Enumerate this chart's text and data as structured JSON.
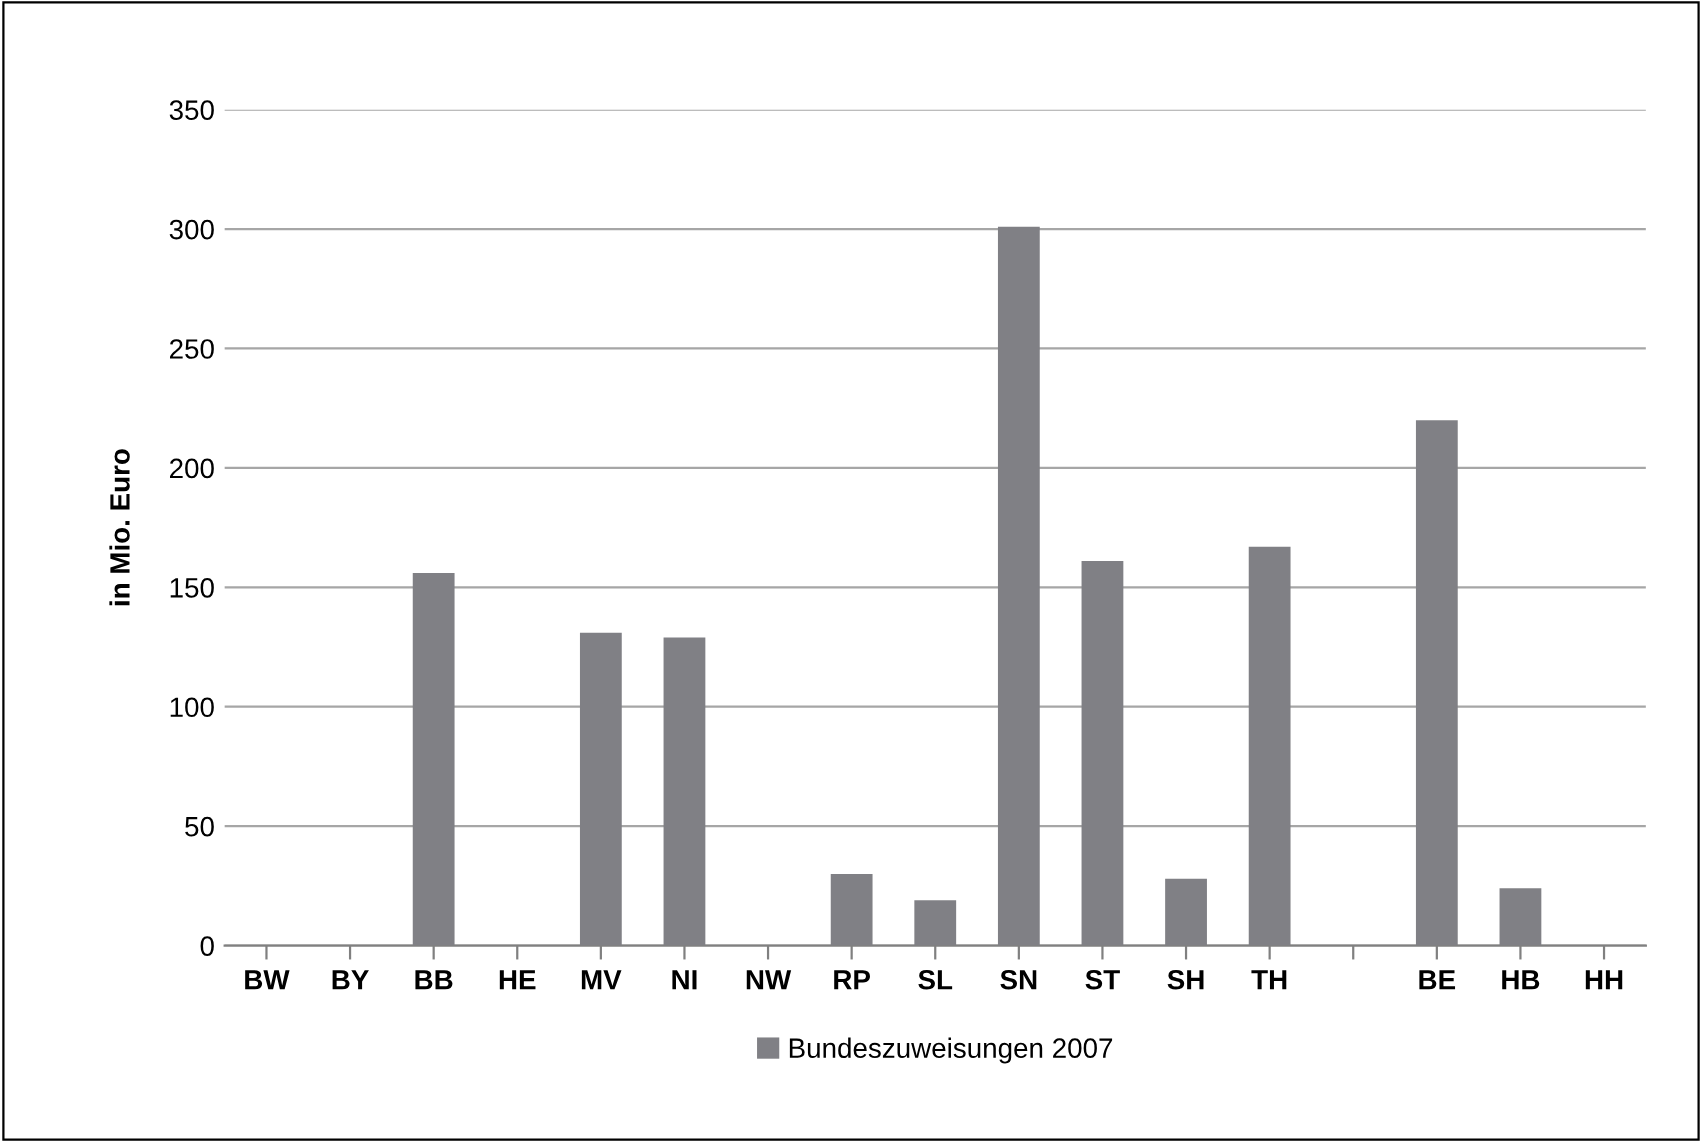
{
  "chart_data": {
    "type": "bar",
    "ylabel": "in Mio. Euro",
    "categories": [
      "BW",
      "BY",
      "BB",
      "HE",
      "MV",
      "NI",
      "NW",
      "RP",
      "SL",
      "SN",
      "ST",
      "SH",
      "TH",
      null,
      "BE",
      "HB",
      "HH"
    ],
    "series": [
      {
        "name": "Bundeszuweisungen 2007",
        "color": "#808085",
        "values": [
          0,
          0,
          156,
          0,
          131,
          129,
          0,
          30,
          19,
          301,
          161,
          28,
          167,
          null,
          220,
          24,
          0
        ]
      }
    ],
    "ylim": [
      0,
      350
    ],
    "yticks": [
      0,
      50,
      100,
      150,
      200,
      250,
      300,
      350
    ],
    "grid": "y",
    "legend": "bottom"
  }
}
